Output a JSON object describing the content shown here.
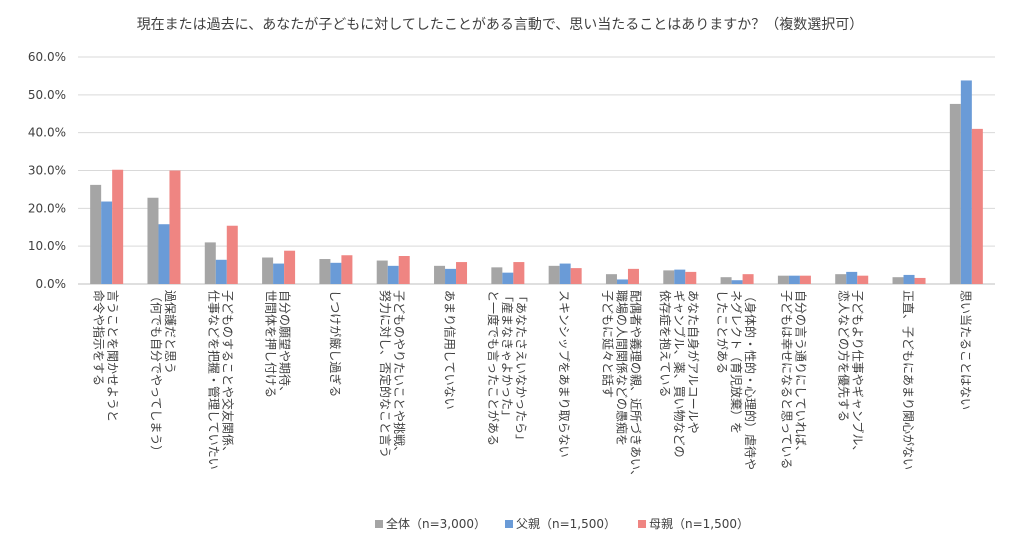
{
  "chart_data": {
    "type": "bar",
    "title": "現在または過去に、あなたが子どもに対してしたことがある言動で、思い当たることはありますか？（複数選択可）",
    "ylim": [
      0,
      60
    ],
    "yticks": [
      "0.0%",
      "10.0%",
      "20.0%",
      "30.0%",
      "40.0%",
      "50.0%",
      "60.0%"
    ],
    "categories": [
      [
        "言うことを聞かせようと",
        "命令や指示をする"
      ],
      [
        "過保護だと思う",
        "（何でも自分でやってしまう）"
      ],
      [
        "子どものすることや交友関係、",
        "仕事などを把握・管理していたい"
      ],
      [
        "自分の願望や期待、",
        "世間体を押し付ける"
      ],
      [
        "しつけが厳し過ぎる"
      ],
      [
        "子どものやりたいことや挑戦、",
        "努力に対し、否定的なこと言う"
      ],
      [
        "あまり信用していない"
      ],
      [
        "「あなたさえいなかったら」",
        "「産まなきゃよかった」",
        "と一度でも言ったことがある"
      ],
      [
        "スキンシップをあまり取らない"
      ],
      [
        "配偶者や義理の親、近所づきあい、",
        "職場の人間関係などの愚痴を",
        "子どもに延々と話す"
      ],
      [
        "あなた自身がアルコールや",
        "ギャンブル、薬、買い物などの",
        "依存症を抱えている"
      ],
      [
        "（身体的・性的・心理的）虐待や",
        "ネグレクト（育児放棄）を",
        "したことがある"
      ],
      [
        "自分の言う通りにしていれば、",
        "子どもは幸せになると思っている"
      ],
      [
        "子どもより仕事やギャンブル、",
        "恋人などの方を優先する"
      ],
      [
        "正直、子どもにあまり関心がない"
      ],
      [
        "思い当たることはない"
      ]
    ],
    "series": [
      {
        "name": "全体（n=3,000）",
        "color": "#a5a5a5",
        "values": [
          26.2,
          22.8,
          11.0,
          7.0,
          6.6,
          6.2,
          4.8,
          4.4,
          4.8,
          2.6,
          3.6,
          1.8,
          2.2,
          2.6,
          1.8,
          47.6
        ]
      },
      {
        "name": "父親（n=1,500）",
        "color": "#6a9bd7",
        "values": [
          21.8,
          15.8,
          6.4,
          5.4,
          5.6,
          4.8,
          4.0,
          3.0,
          5.4,
          1.2,
          3.8,
          1.0,
          2.2,
          3.2,
          2.4,
          53.8
        ]
      },
      {
        "name": "母親（n=1,500）",
        "color": "#ef8582",
        "values": [
          30.2,
          30.0,
          15.4,
          8.8,
          7.6,
          7.4,
          5.8,
          5.8,
          4.2,
          4.0,
          3.2,
          2.6,
          2.2,
          2.2,
          1.6,
          41.0
        ]
      }
    ]
  }
}
